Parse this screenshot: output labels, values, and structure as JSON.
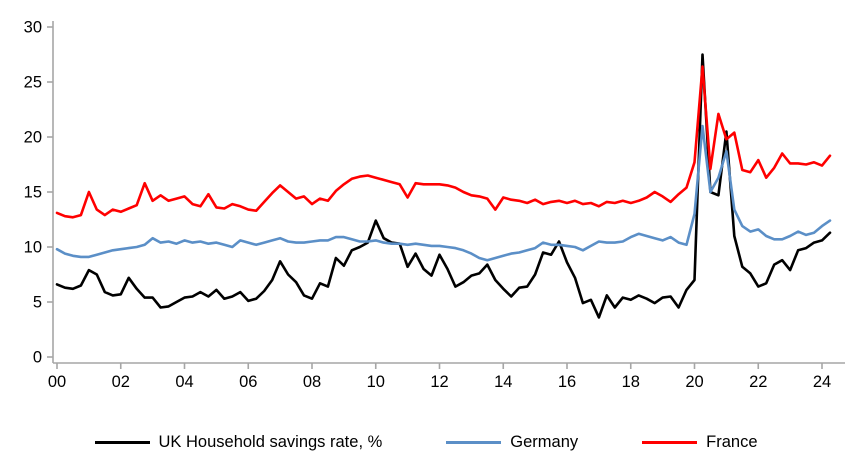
{
  "chart_data": {
    "type": "line",
    "title": "",
    "xlabel": "",
    "ylabel": "",
    "frequency": "quarterly",
    "x_start": "2000Q1",
    "x_end": "2024Q2",
    "x_tick_labels": [
      "00",
      "02",
      "04",
      "06",
      "08",
      "10",
      "12",
      "14",
      "16",
      "18",
      "20",
      "22",
      "24"
    ],
    "y_ticks": [
      0,
      5,
      10,
      15,
      20,
      25,
      30
    ],
    "ylim": [
      0,
      30
    ],
    "grid": false,
    "legend_position": "bottom",
    "series": [
      {
        "name": "UK Household savings rate, %",
        "color": "#000000",
        "values": [
          6.6,
          6.3,
          6.2,
          6.5,
          7.9,
          7.5,
          5.9,
          5.6,
          5.7,
          7.2,
          6.2,
          5.4,
          5.4,
          4.5,
          4.6,
          5.0,
          5.4,
          5.5,
          5.9,
          5.5,
          6.1,
          5.3,
          5.5,
          5.9,
          5.1,
          5.3,
          6.0,
          7.0,
          8.7,
          7.5,
          6.8,
          5.6,
          5.3,
          6.7,
          6.4,
          9.0,
          8.3,
          9.7,
          10.0,
          10.4,
          12.4,
          10.8,
          10.4,
          10.3,
          8.2,
          9.4,
          8.0,
          7.4,
          9.3,
          8.0,
          6.4,
          6.8,
          7.4,
          7.6,
          8.4,
          7.0,
          6.2,
          5.5,
          6.3,
          6.4,
          7.5,
          9.5,
          9.3,
          10.5,
          8.6,
          7.2,
          4.9,
          5.2,
          3.6,
          5.6,
          4.5,
          5.4,
          5.2,
          5.6,
          5.3,
          4.9,
          5.4,
          5.5,
          4.5,
          6.1,
          7.0,
          27.5,
          15.0,
          14.7,
          20.5,
          11.0,
          8.2,
          7.6,
          6.4,
          6.7,
          8.4,
          8.8,
          7.9,
          9.7,
          9.9,
          10.4,
          10.6,
          11.3
        ]
      },
      {
        "name": "Germany",
        "color": "#5B8FC7",
        "values": [
          9.8,
          9.4,
          9.2,
          9.1,
          9.1,
          9.3,
          9.5,
          9.7,
          9.8,
          9.9,
          10.0,
          10.2,
          10.8,
          10.4,
          10.5,
          10.3,
          10.6,
          10.4,
          10.5,
          10.3,
          10.4,
          10.2,
          10.0,
          10.6,
          10.4,
          10.2,
          10.4,
          10.6,
          10.8,
          10.5,
          10.4,
          10.4,
          10.5,
          10.6,
          10.6,
          10.9,
          10.9,
          10.7,
          10.5,
          10.5,
          10.6,
          10.4,
          10.3,
          10.3,
          10.2,
          10.3,
          10.2,
          10.1,
          10.1,
          10.0,
          9.9,
          9.7,
          9.4,
          9.0,
          8.8,
          9.0,
          9.2,
          9.4,
          9.5,
          9.7,
          9.9,
          10.4,
          10.2,
          10.2,
          10.1,
          10.0,
          9.7,
          10.1,
          10.5,
          10.4,
          10.4,
          10.5,
          10.9,
          11.2,
          11.0,
          10.8,
          10.6,
          10.9,
          10.4,
          10.2,
          13.0,
          21.0,
          15.0,
          16.3,
          18.7,
          13.4,
          11.9,
          11.4,
          11.6,
          11.0,
          10.7,
          10.7,
          11.0,
          11.4,
          11.1,
          11.3,
          11.9,
          12.4
        ]
      },
      {
        "name": "France",
        "color": "#FF0000",
        "values": [
          13.1,
          12.8,
          12.7,
          12.9,
          15.0,
          13.4,
          12.9,
          13.4,
          13.2,
          13.5,
          13.8,
          15.8,
          14.2,
          14.7,
          14.2,
          14.4,
          14.6,
          13.9,
          13.7,
          14.8,
          13.6,
          13.5,
          13.9,
          13.7,
          13.4,
          13.3,
          14.1,
          14.9,
          15.6,
          15.0,
          14.4,
          14.6,
          13.9,
          14.4,
          14.2,
          15.1,
          15.7,
          16.2,
          16.4,
          16.5,
          16.3,
          16.1,
          15.9,
          15.7,
          14.5,
          15.8,
          15.7,
          15.7,
          15.7,
          15.6,
          15.4,
          15.0,
          14.7,
          14.6,
          14.4,
          13.4,
          14.5,
          14.3,
          14.2,
          14.0,
          14.3,
          13.9,
          14.1,
          14.2,
          14.0,
          14.2,
          13.9,
          14.0,
          13.7,
          14.1,
          14.0,
          14.2,
          14.0,
          14.2,
          14.5,
          15.0,
          14.6,
          14.1,
          14.8,
          15.4,
          17.7,
          26.4,
          17.1,
          22.1,
          19.8,
          20.4,
          17.0,
          16.8,
          17.9,
          16.3,
          17.2,
          18.5,
          17.6,
          17.6,
          17.5,
          17.7,
          17.4,
          18.3
        ]
      }
    ]
  },
  "colors": {
    "axis": "#A6A6A6",
    "tick_text": "#000000",
    "background": "#FFFFFF"
  }
}
